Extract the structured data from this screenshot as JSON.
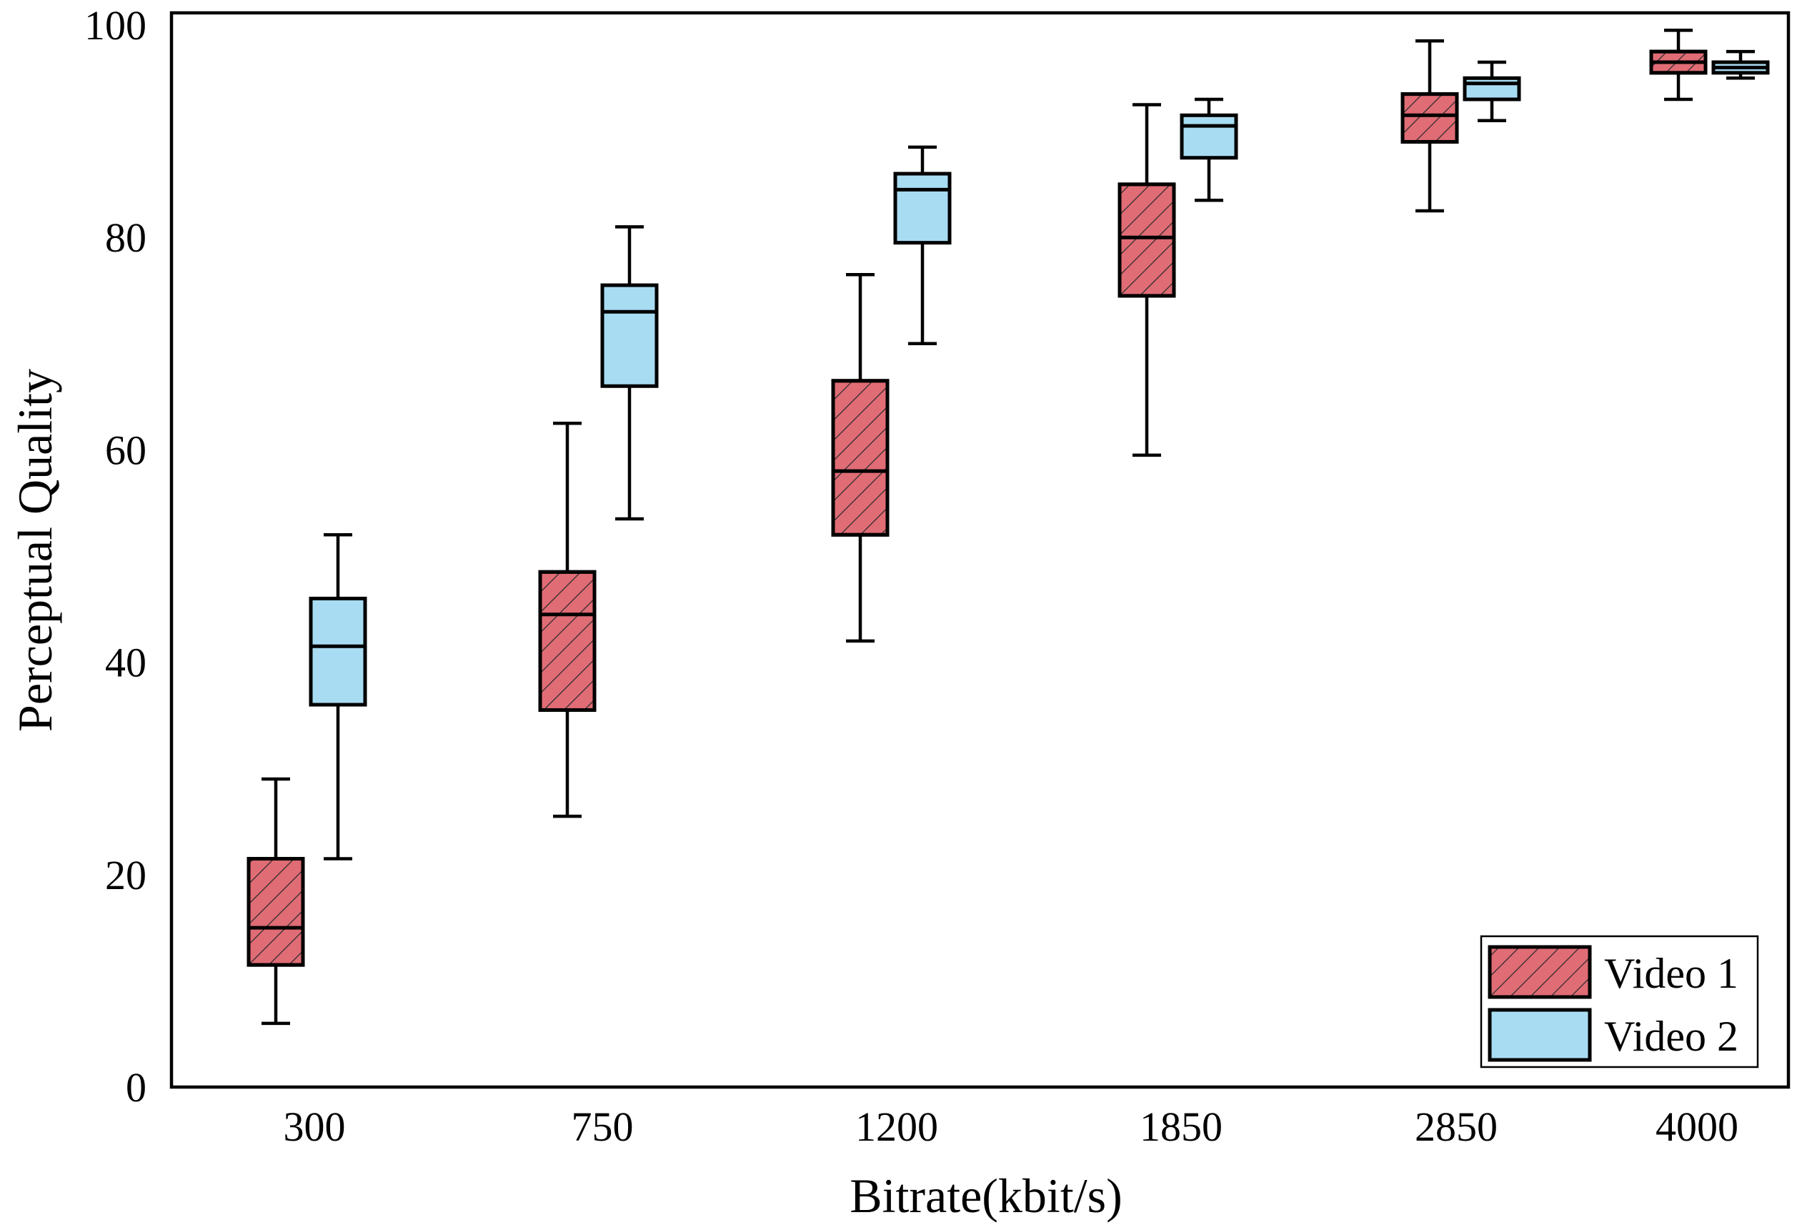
{
  "chart_data": {
    "type": "boxplot",
    "title": "",
    "xlabel": "Bitrate(kbit/s)",
    "ylabel": "Perceptual Quality",
    "ylim": [
      0,
      100
    ],
    "yticks": [
      0,
      20,
      40,
      60,
      80,
      100
    ],
    "categories": [
      "300",
      "750",
      "1200",
      "1850",
      "2850",
      "4000"
    ],
    "legend_position": "bottom-right",
    "series": [
      {
        "name": "Video 1",
        "color": "#e06c75",
        "pattern": "diagonal-hatch",
        "boxes": [
          {
            "min": 6,
            "q1": 11.5,
            "median": 15,
            "q3": 21.5,
            "max": 29
          },
          {
            "min": 25.5,
            "q1": 35.5,
            "median": 44.5,
            "q3": 48.5,
            "max": 62.5
          },
          {
            "min": 42,
            "q1": 52,
            "median": 58,
            "q3": 66.5,
            "max": 76.5
          },
          {
            "min": 59.5,
            "q1": 74.5,
            "median": 80,
            "q3": 85,
            "max": 92.5
          },
          {
            "min": 82.5,
            "q1": 89,
            "median": 91.5,
            "q3": 93.5,
            "max": 98.5
          },
          {
            "min": 93,
            "q1": 95.5,
            "median": 96.5,
            "q3": 97.5,
            "max": 99.5
          }
        ]
      },
      {
        "name": "Video 2",
        "color": "#a8dcf2",
        "pattern": "solid",
        "boxes": [
          {
            "min": 21.5,
            "q1": 36,
            "median": 41.5,
            "q3": 46,
            "max": 52
          },
          {
            "min": 53.5,
            "q1": 66,
            "median": 73,
            "q3": 75.5,
            "max": 81
          },
          {
            "min": 70,
            "q1": 79.5,
            "median": 84.5,
            "q3": 86,
            "max": 88.5
          },
          {
            "min": 83.5,
            "q1": 87.5,
            "median": 90.5,
            "q3": 91.5,
            "max": 93
          },
          {
            "min": 91,
            "q1": 93,
            "median": 94.5,
            "q3": 95,
            "max": 96.5
          },
          {
            "min": 95,
            "q1": 95.5,
            "median": 96,
            "q3": 96.5,
            "max": 97.5
          }
        ]
      }
    ]
  }
}
